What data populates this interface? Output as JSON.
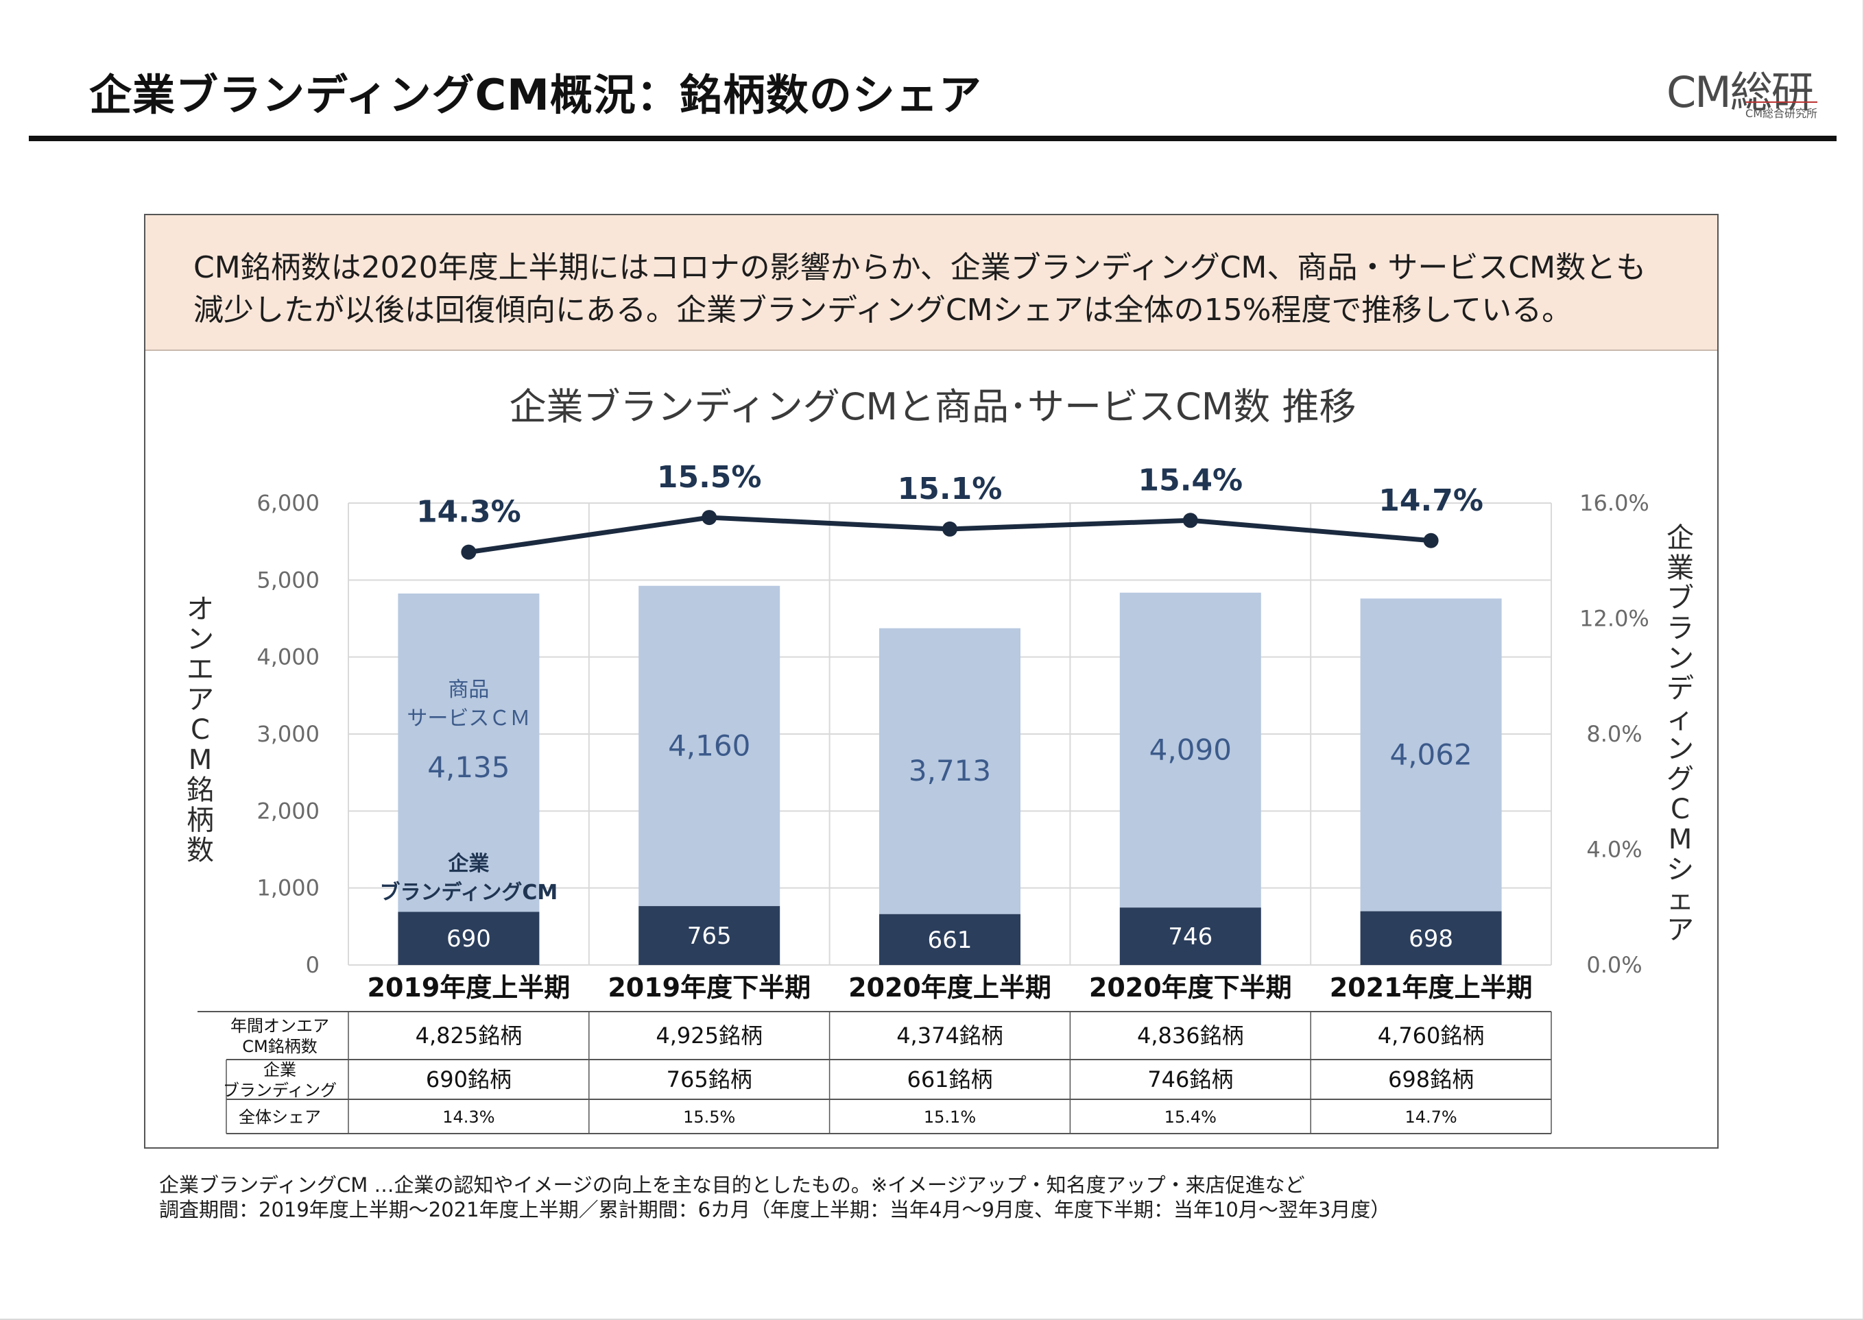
{
  "page": {
    "title": "企業ブランディングCM概況：銘柄数のシェア",
    "logo_main": "CM総研",
    "logo_sub": "CM総合研究所"
  },
  "summary": {
    "line1": "CM銘柄数は2020年度上半期にはコロナの影響からか、企業ブランディングCM、商品・サービスCM数とも",
    "line2": "減少したが以後は回復傾向にある。企業ブランディングCMシェアは全体の15%程度で推移している。"
  },
  "chart_data": {
    "type": "bar",
    "stacked": true,
    "title": "企業ブランディングCMと商品･サービスCM数 推移",
    "categories": [
      "2019年度上半期",
      "2019年度下半期",
      "2020年度上半期",
      "2020年度下半期",
      "2021年度上半期"
    ],
    "series": [
      {
        "name": "企業\nブランディングCM",
        "values": [
          690,
          765,
          661,
          746,
          698
        ],
        "color": "#2b3e5c"
      },
      {
        "name": "商品\nサービスＣＭ",
        "values": [
          4135,
          4160,
          3713,
          4090,
          4062
        ],
        "color": "#b8c9e0"
      }
    ],
    "line_series": {
      "values": [
        14.3,
        15.5,
        15.1,
        15.4,
        14.7
      ],
      "labels": [
        "14.3%",
        "15.5%",
        "15.1%",
        "15.4%",
        "14.7%"
      ],
      "color": "#1b2a3f"
    },
    "ylabel": "オンエアCM銘柄数",
    "y2label": "企業ブランディングCMシェア",
    "ylim": [
      0,
      6000
    ],
    "y2lim": [
      0,
      16
    ],
    "yticks": [
      "0",
      "1,000",
      "2,000",
      "3,000",
      "4,000",
      "5,000",
      "6,000"
    ],
    "y2ticks": [
      "0.0%",
      "4.0%",
      "8.0%",
      "12.0%",
      "16.0%"
    ],
    "bar_labels_light": [
      "4,135",
      "4,160",
      "3,713",
      "4,090",
      "4,062"
    ],
    "bar_labels_dark": [
      "690",
      "765",
      "661",
      "746",
      "698"
    ],
    "annotation_light": [
      "商品",
      "サービスＣＭ"
    ],
    "annotation_dark": [
      "企業",
      "ブランディングCM"
    ],
    "grid": true
  },
  "table": {
    "rows": [
      {
        "label": [
          "年間オンエア",
          "CM銘柄数"
        ],
        "values": [
          "4,825銘柄",
          "4,925銘柄",
          "4,374銘柄",
          "4,836銘柄",
          "4,760銘柄"
        ]
      },
      {
        "label": [
          "企業",
          "ブランディング"
        ],
        "values": [
          "690銘柄",
          "765銘柄",
          "661銘柄",
          "746銘柄",
          "698銘柄"
        ]
      },
      {
        "label": [
          "全体シェア"
        ],
        "values": [
          "14.3%",
          "15.5%",
          "15.1%",
          "15.4%",
          "14.7%"
        ]
      }
    ]
  },
  "footnotes": {
    "line1": "企業ブランディングCM …企業の認知やイメージの向上を主な目的としたもの。※イメージアップ・知名度アップ・来店促進など",
    "line2": "調査期間：2019年度上半期～2021年度上半期／累計期間：6カ月（年度上半期：当年4月～9月度、年度下半期：当年10月～翌年3月度）"
  }
}
